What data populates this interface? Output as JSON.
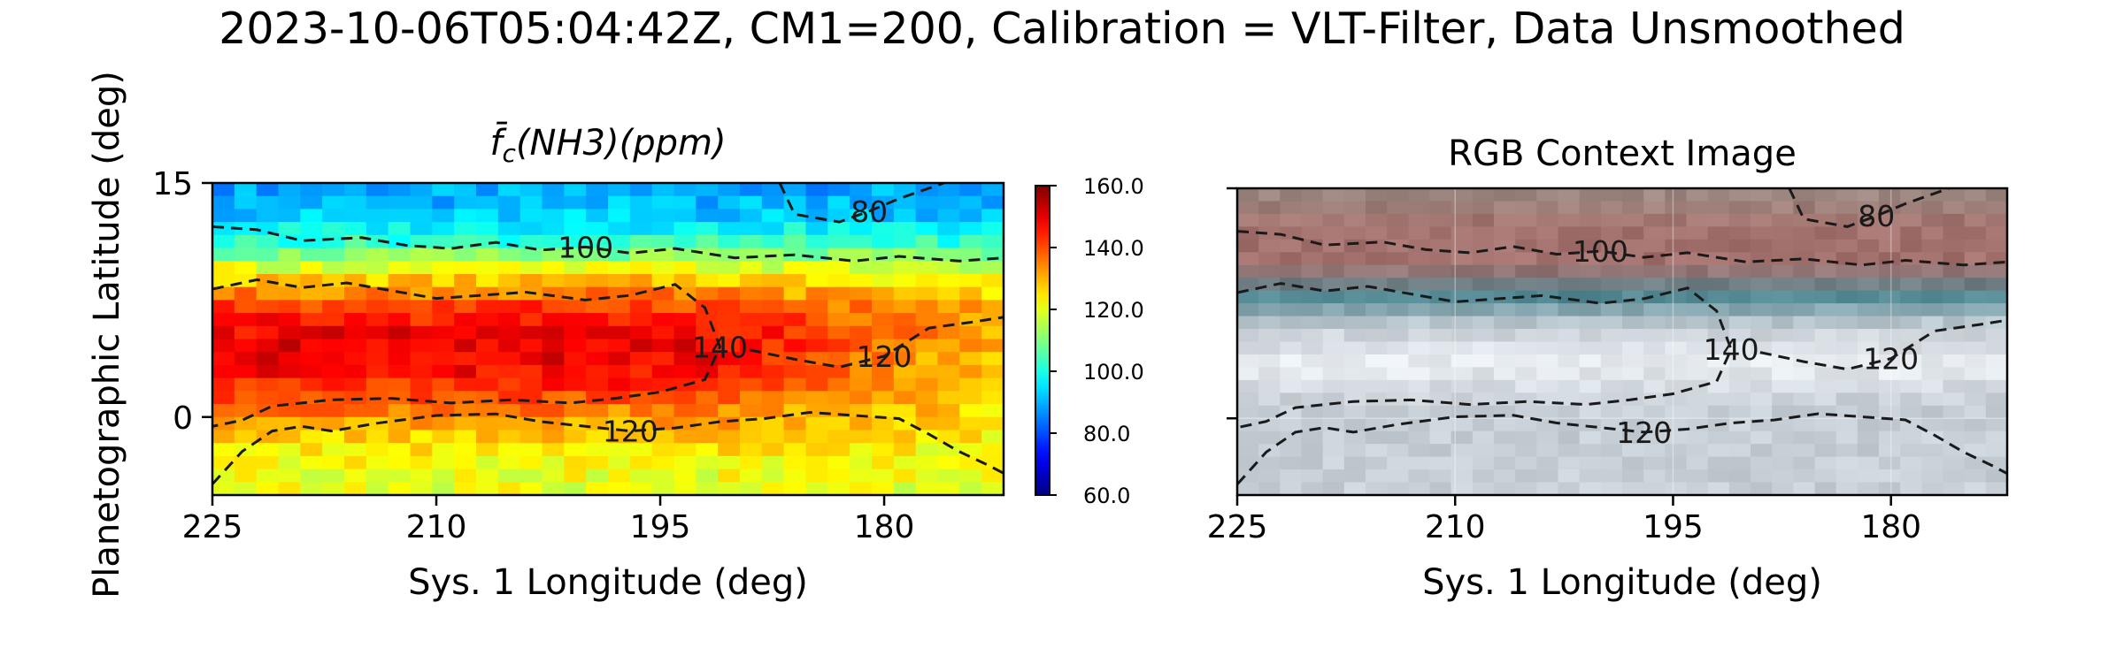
{
  "figure": {
    "suptitle": "2023-10-06T05:04:42Z, CM1=200, Calibration = VLT-Filter, Data Unsmoothed"
  },
  "chart_data": [
    {
      "type": "heatmap",
      "title": "f̄c(NH3)(ppm)",
      "xlabel": "Sys. 1 Longitude (deg)",
      "ylabel": "Planetographic Latitude (deg)",
      "xlim": [
        225,
        172
      ],
      "ylim": [
        -5,
        15
      ],
      "xticks": [
        "225",
        "210",
        "195",
        "180"
      ],
      "yticks": [
        "15",
        "0"
      ],
      "colormap": "jet",
      "colorbar": {
        "min": 60,
        "max": 160,
        "ticks": [
          "160.0",
          "140.0",
          "120.0",
          "100.0",
          "80.0",
          "60.0"
        ]
      },
      "grid": false,
      "field_profile": [
        {
          "lat": 15,
          "value": 88
        },
        {
          "lat": 13,
          "value": 92
        },
        {
          "lat": 11,
          "value": 104
        },
        {
          "lat": 9,
          "value": 126
        },
        {
          "lat": 7,
          "value": 142
        },
        {
          "lat": 5,
          "value": 150
        },
        {
          "lat": 3,
          "value": 148
        },
        {
          "lat": 1,
          "value": 138
        },
        {
          "lat": -1,
          "value": 128
        },
        {
          "lat": -3,
          "value": 122
        },
        {
          "lat": -5,
          "value": 120
        }
      ],
      "contours": [
        {
          "level": 80,
          "label": "80",
          "points": [
            [
              187,
              15
            ],
            [
              186,
              13
            ],
            [
              183,
              12.5
            ],
            [
              181,
              13.2
            ],
            [
              179,
              14
            ],
            [
              176,
              15
            ]
          ]
        },
        {
          "level": 100,
          "label": "100",
          "points": [
            [
              225,
              12.2
            ],
            [
              222,
              12
            ],
            [
              219,
              11.3
            ],
            [
              215,
              11.5
            ],
            [
              212,
              11
            ],
            [
              209,
              10.8
            ],
            [
              206,
              11.2
            ],
            [
              203,
              10.7
            ],
            [
              200,
              10.9
            ],
            [
              197,
              10.5
            ],
            [
              194,
              10.8
            ],
            [
              190,
              10.2
            ],
            [
              186,
              10.4
            ],
            [
              182,
              10
            ],
            [
              179,
              10.3
            ],
            [
              175,
              10
            ],
            [
              172,
              10.2
            ]
          ]
        },
        {
          "level": 140,
          "label": "140",
          "points": [
            [
              225,
              8.2
            ],
            [
              222,
              8.8
            ],
            [
              219,
              8.3
            ],
            [
              216,
              8.6
            ],
            [
              213,
              8.1
            ],
            [
              210,
              7.6
            ],
            [
              207,
              7.8
            ],
            [
              204,
              8
            ],
            [
              200,
              7.5
            ],
            [
              197,
              7.8
            ],
            [
              194,
              8.5
            ],
            [
              192,
              7
            ],
            [
              191,
              4.5
            ],
            [
              192,
              2.4
            ],
            [
              195,
              1.6
            ],
            [
              198,
              1.2
            ],
            [
              201,
              0.9
            ],
            [
              205,
              1.1
            ],
            [
              209,
              0.9
            ],
            [
              213,
              1.2
            ],
            [
              217,
              1.1
            ],
            [
              221,
              0.7
            ],
            [
              223,
              -0.2
            ],
            [
              225,
              -0.6
            ]
          ]
        },
        {
          "level": 120,
          "label": "120",
          "points": [
            [
              189,
              4.3
            ],
            [
              186,
              3.7
            ],
            [
              183,
              3.2
            ],
            [
              180,
              3.9
            ],
            [
              177,
              5.7
            ],
            [
              174,
              6.1
            ],
            [
              172,
              6.4
            ]
          ]
        },
        {
          "level": 120,
          "label": "120",
          "points": [
            [
              225,
              -4.3
            ],
            [
              223,
              -2.2
            ],
            [
              221,
              -0.9
            ],
            [
              219,
              -0.6
            ],
            [
              217,
              -0.9
            ],
            [
              214,
              -0.4
            ],
            [
              210,
              0.1
            ],
            [
              206,
              0.2
            ],
            [
              203,
              -0.3
            ],
            [
              200,
              -0.6
            ],
            [
              197,
              -0.9
            ],
            [
              194,
              -0.7
            ],
            [
              191,
              -0.3
            ],
            [
              188,
              -0.1
            ],
            [
              185,
              0.3
            ],
            [
              182,
              0.1
            ],
            [
              179,
              -0.1
            ],
            [
              177,
              -1.1
            ],
            [
              175,
              -2.2
            ],
            [
              173,
              -3.1
            ],
            [
              172,
              -3.6
            ]
          ]
        }
      ]
    },
    {
      "type": "heatmap",
      "title": "RGB Context Image",
      "xlabel": "Sys. 1 Longitude (deg)",
      "xlim": [
        225,
        172
      ],
      "ylim": [
        -5,
        15
      ],
      "xticks": [
        "225",
        "210",
        "195",
        "180"
      ],
      "colors": {
        "north_pole": "#9a8c84",
        "north_belt": "#a3716d",
        "blue_band": "#4f8590",
        "white_zone": "#eaeef2",
        "south": "#c7cfd6"
      },
      "grid": true
    }
  ]
}
